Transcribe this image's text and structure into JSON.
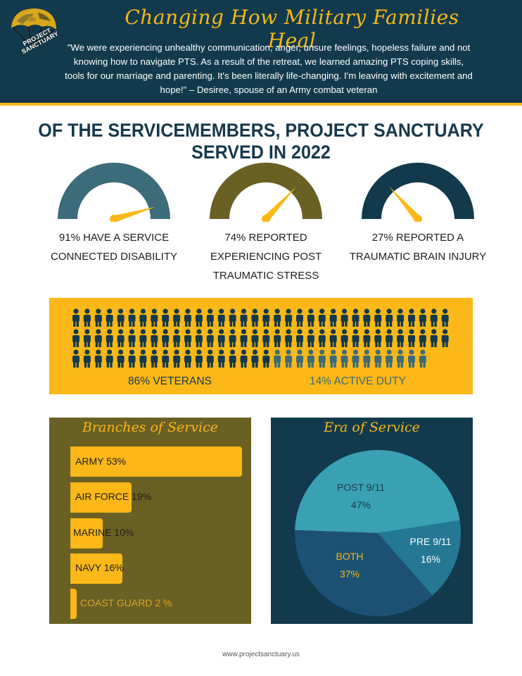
{
  "colors": {
    "navy": "#123a4c",
    "gold": "#fbb818",
    "teal": "#3c6b79",
    "olive": "#6b6023",
    "pie_post_9_11": "#3aa1b3",
    "pie_pre_9_11": "#247893",
    "pie_both": "#1c5174"
  },
  "logo": {
    "icon": "parachute-logo-icon",
    "text_line1": "PROJECT",
    "text_line2": "SANCTUARY"
  },
  "header": {
    "title": "Changing How Military Families Heal",
    "quote": "\"We were experiencing unhealthy communication, anger, unsure feelings, hopeless failure and not knowing how to navigate PTS. As a result of the retreat, we learned amazing PTS coping skills, tools for our marriage and parenting. It's been literally life-changing. I'm leaving with excitement and hope!\" – Desiree, spouse of an Army combat veteran"
  },
  "section_title": "OF THE SERVICEMEMBERS, PROJECT SANCTUARY SERVED IN 2022",
  "gauges": [
    {
      "value": 0.91,
      "color": "#3c6b79",
      "line1": "91%  HAVE A SERVICE",
      "line2": "CONNECTED DISABILITY",
      "line3": ""
    },
    {
      "value": 0.74,
      "color": "#6b6023",
      "line1": "74% REPORTED",
      "line2": "EXPERIENCING POST",
      "line3": "TRAUMATIC STRESS"
    },
    {
      "value": 0.27,
      "color": "#123a4c",
      "line1": "27% REPORTED A",
      "line2": "TRAUMATIC BRAIN INJURY",
      "line3": ""
    }
  ],
  "people": {
    "icon": "person-icon",
    "total": 100,
    "veterans_count": 86,
    "veterans_label": "86% VETERANS",
    "active_label": "14% ACTIVE DUTY",
    "veteran_color": "#123a4c",
    "active_color": "#3c6b79"
  },
  "branches": {
    "title": "Branches of Service",
    "items": [
      {
        "label": "ARMY 53%",
        "value": 53
      },
      {
        "label": "AIR FORCE 19%",
        "value": 19
      },
      {
        "label": "MARINE 10%",
        "value": 10
      },
      {
        "label": "NAVY 16%",
        "value": 16
      },
      {
        "label": "COAST GUARD 2 %",
        "value": 2
      }
    ]
  },
  "chart_data": {
    "type": "pie",
    "title": "Era of Service",
    "slices": [
      {
        "line1": "POST 9/11",
        "line2": "47%",
        "value": 47
      },
      {
        "line1": "PRE 9/11",
        "line2": "16%",
        "value": 16
      },
      {
        "line1": "BOTH",
        "line2": "37%",
        "value": 37
      }
    ]
  },
  "footer": {
    "url": "www.projectsanctuary.us"
  }
}
